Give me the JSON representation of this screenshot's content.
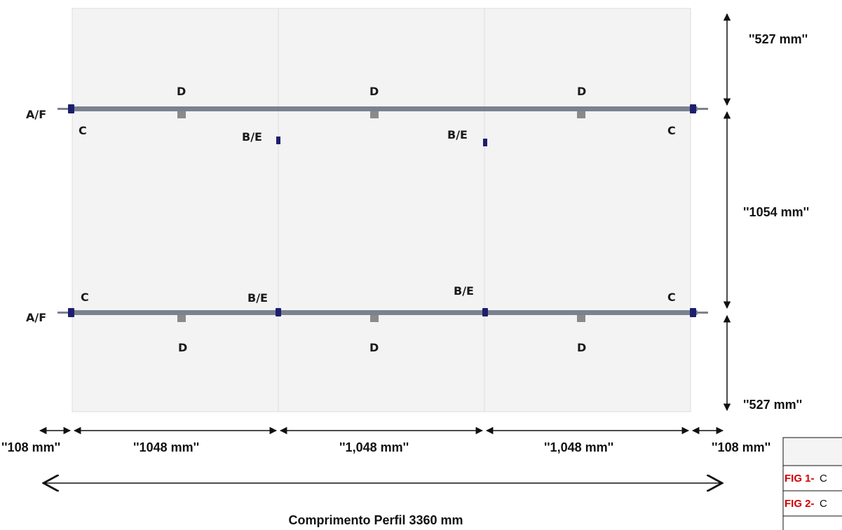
{
  "labels": {
    "af": "A/F",
    "be": "B/E",
    "c": "C",
    "d": "D"
  },
  "dimensions": {
    "top": "''527 mm''",
    "middle": "''1054 mm''",
    "bottom": "''527 mm''",
    "left_margin": "''108 mm''",
    "span_1": "''1048 mm''",
    "span_2": "''1,048 mm''",
    "span_3": "''1,048 mm''",
    "right_margin": "''108 mm''"
  },
  "caption": "Comprimento Perfil  3360 mm",
  "table": {
    "rows": [
      {
        "tag": "FIG 1-",
        "text": "C"
      },
      {
        "tag": "FIG 2-",
        "text": "C"
      }
    ]
  },
  "colors": {
    "rail": "#7a8290",
    "clip": "#1c1f6e",
    "panel_bg": "#f3f3f3",
    "table_red": "#d00000"
  }
}
